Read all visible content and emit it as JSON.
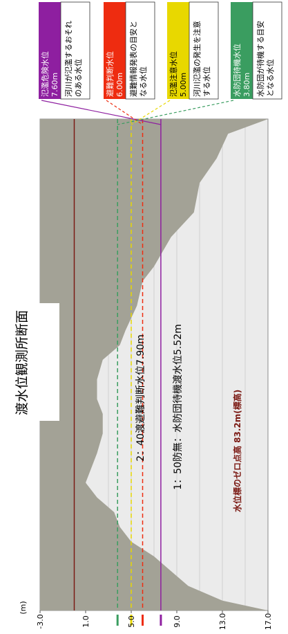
{
  "title": "渡水位観測所断面",
  "chart_data": {
    "type": "area",
    "title": "渡水位観測所断面",
    "y_unit": "(m)",
    "ylim": [
      -3.0,
      17.0
    ],
    "y_ticks": [
      "17.0",
      "13.0",
      "9.0",
      "5.0",
      "1.0",
      "-3.0"
    ],
    "grid": true,
    "legend_placement": "top",
    "ground_color": "#a3a296",
    "river_section": [
      [
        0.0,
        17.0
      ],
      [
        0.03,
        13.5
      ],
      [
        0.08,
        12.5
      ],
      [
        0.13,
        11.0
      ],
      [
        0.19,
        10.5
      ],
      [
        0.24,
        8.5
      ],
      [
        0.3,
        7.0
      ],
      [
        0.33,
        6.0
      ],
      [
        0.38,
        5.5
      ],
      [
        0.43,
        4.5
      ],
      [
        0.46,
        4.0
      ],
      [
        0.49,
        2.5
      ],
      [
        0.53,
        2.0
      ],
      [
        0.57,
        2.0
      ],
      [
        0.6,
        2.5
      ],
      [
        0.64,
        2.5
      ],
      [
        0.68,
        2.0
      ],
      [
        0.71,
        1.5
      ],
      [
        0.74,
        1.0
      ],
      [
        0.77,
        2.0
      ],
      [
        0.8,
        3.5
      ],
      [
        0.83,
        4.0
      ],
      [
        0.86,
        5.0
      ],
      [
        0.89,
        7.0
      ],
      [
        0.92,
        8.5
      ],
      [
        0.95,
        10.0
      ],
      [
        0.98,
        13.0
      ],
      [
        1.0,
        17.0
      ]
    ],
    "reference_levels": [
      {
        "key": "danger",
        "name": "氾濫危険水位",
        "value_label": "7.60m",
        "value": 7.6,
        "description": "河川が氾濫するおそれのある水位",
        "color": "#8e1fa0",
        "line": "solid"
      },
      {
        "key": "evacuation",
        "name": "避難判断水位",
        "value_label": "6.00m",
        "value": 6.0,
        "description": "避難情報発表の目安となる水位",
        "color": "#ee2c10",
        "line": "dashed"
      },
      {
        "key": "warning",
        "name": "氾濫注意水位",
        "value_label": "5.00m",
        "value": 5.0,
        "description": "河川氾濫の発生を注意する水位",
        "color": "#e8d800",
        "line": "dashed"
      },
      {
        "key": "standby",
        "name": "水防団待機水位",
        "value_label": "3.80m",
        "value": 3.8,
        "description": "水防団が待機する目安となる水位",
        "color": "#3a9d60",
        "line": "dashed"
      }
    ],
    "zero_point": {
      "label": "水位標のゼロ点高 83.2m(標高)",
      "value": 0,
      "color": "#7b1a14"
    },
    "annotations": [
      {
        "text": "2：40渡避難判断水位7.90m"
      },
      {
        "text": "1：50防無：水防団待機渡水位5.52m"
      }
    ]
  }
}
